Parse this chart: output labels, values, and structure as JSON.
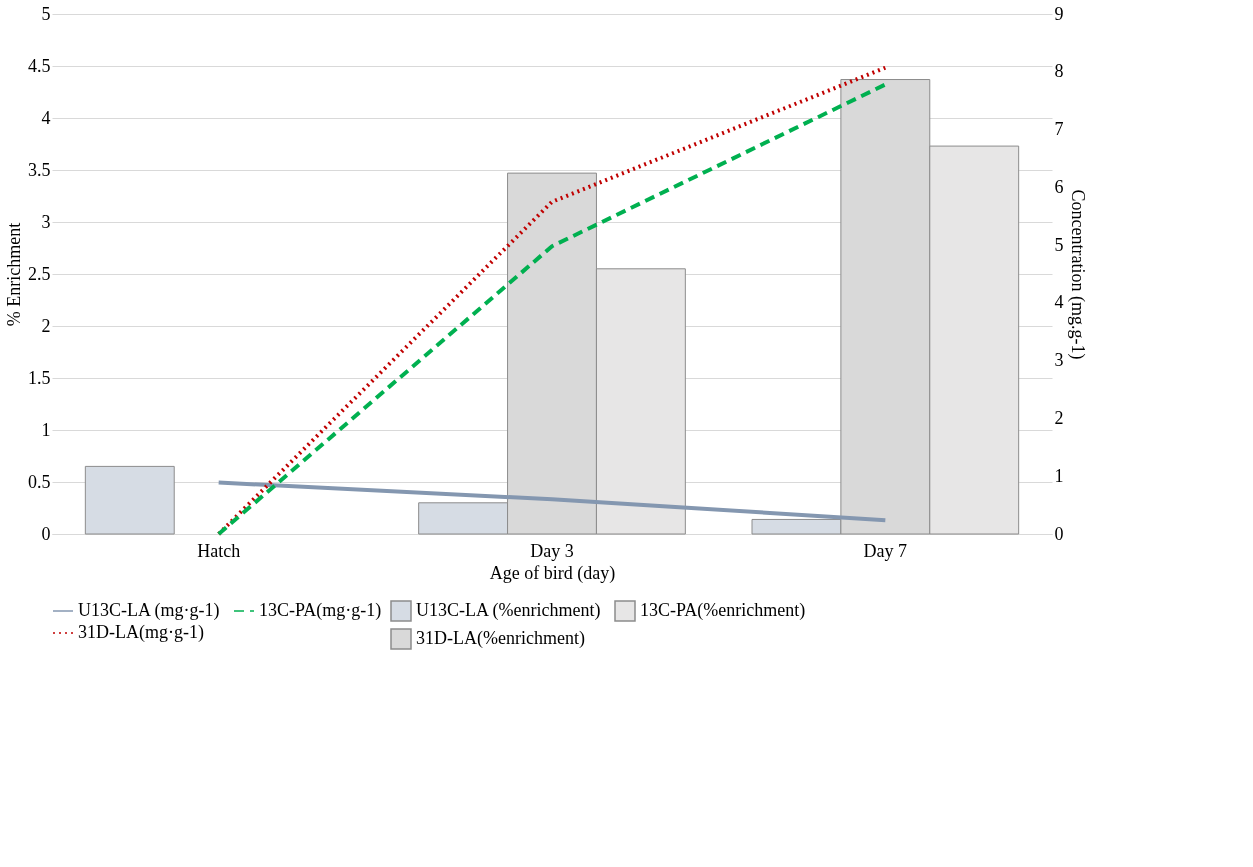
{
  "chart_data": {
    "type": "bar",
    "xlabel": "Age of bird (day)",
    "ylabel": "% Enrichment",
    "y2label": "Concentration (mg.g-1)",
    "categories": [
      "Hatch",
      "Day 3",
      "Day 7"
    ],
    "series": [
      {
        "name": "U13C-LA (%enrichment)",
        "color": "#d6dce4",
        "values": [
          0.65,
          0.3,
          0.14
        ]
      },
      {
        "name": "31D-LA(%enrichment)",
        "color": "#d9d9d9",
        "values": [
          null,
          3.47,
          4.37
        ]
      },
      {
        "name": "13C-PA(%enrichment)",
        "color": "#e7e6e6",
        "values": [
          null,
          2.55,
          3.73
        ]
      },
      {
        "name": "U13C-LA (mg·g-1)",
        "type": "line",
        "axis": "y2",
        "color": "#8497b0",
        "line_style": "solid",
        "values": [
          0.89,
          0.6,
          0.24
        ]
      },
      {
        "name": "31D-LA(mg·g-1)",
        "type": "line",
        "axis": "y2",
        "color": "#c00000",
        "line_style": "dotted",
        "values": [
          0,
          5.75,
          8.07
        ]
      },
      {
        "name": "13C-PA(mg·g-1)",
        "type": "line",
        "axis": "y2",
        "color": "#00b050",
        "line_style": "dashed",
        "values": [
          0,
          4.98,
          7.78
        ]
      }
    ],
    "ylim": [
      0,
      5
    ],
    "yticks": [
      0,
      0.5,
      1,
      1.5,
      2,
      2.5,
      3,
      3.5,
      4,
      4.5,
      5
    ],
    "y2lim": [
      0,
      9
    ],
    "y2ticks": [
      0,
      1,
      2,
      3,
      4,
      5,
      6,
      7,
      8,
      9
    ],
    "grid": "y",
    "legend": "bottom"
  }
}
